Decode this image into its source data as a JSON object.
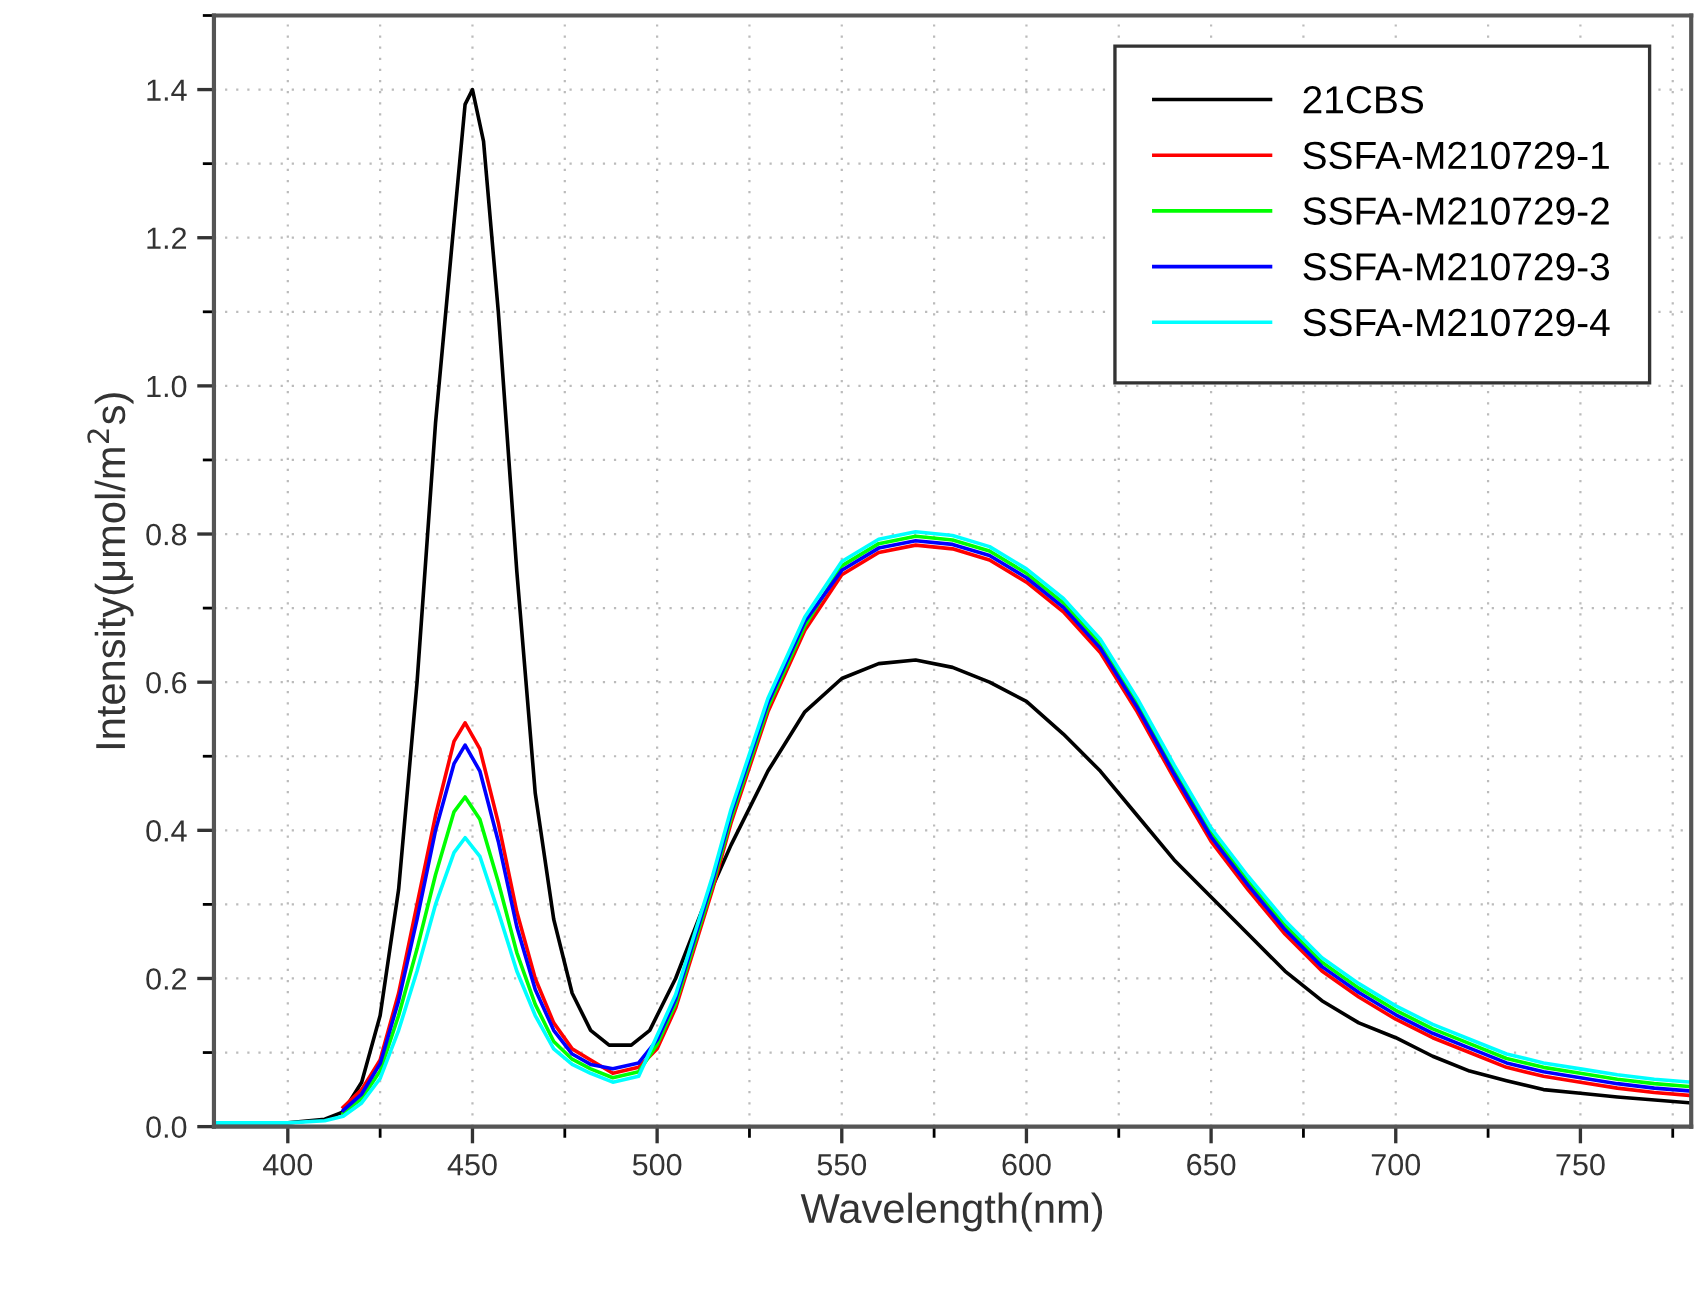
{
  "chart_data": {
    "type": "line",
    "xlabel": "Wavelength(nm)",
    "ylabel": "Intensity(μmol/m$^{2}$s)",
    "xlim": [
      380,
      780
    ],
    "xticks": [
      400,
      450,
      500,
      550,
      600,
      650,
      700,
      750
    ],
    "ylim": [
      0,
      1.5
    ],
    "yticks": [
      {
        "value": 0,
        "label": "0.0"
      },
      0.2,
      0.4,
      0.6,
      0.8,
      {
        "value": 1,
        "label": "1.0"
      },
      1.2,
      1.4
    ],
    "grid": true,
    "legend": "top right",
    "line_style": "solid",
    "marker": "none",
    "series": [
      {
        "name": "21CBS",
        "color": "#000000",
        "x": [
          380,
          400,
          410,
          415,
          420,
          425,
          430,
          435,
          440,
          445,
          448,
          450,
          453,
          457,
          462,
          467,
          472,
          477,
          482,
          487,
          493,
          498,
          505,
          512,
          520,
          530,
          540,
          550,
          560,
          570,
          580,
          590,
          600,
          610,
          620,
          630,
          640,
          650,
          660,
          670,
          680,
          690,
          700,
          710,
          720,
          730,
          740,
          750,
          760,
          780
        ],
        "values": [
          0.005,
          0.005,
          0.01,
          0.02,
          0.06,
          0.15,
          0.32,
          0.6,
          0.95,
          1.22,
          1.38,
          1.4,
          1.33,
          1.1,
          0.75,
          0.45,
          0.28,
          0.18,
          0.13,
          0.11,
          0.11,
          0.13,
          0.2,
          0.29,
          0.38,
          0.48,
          0.56,
          0.605,
          0.625,
          0.63,
          0.62,
          0.6,
          0.574,
          0.53,
          0.48,
          0.42,
          0.36,
          0.31,
          0.26,
          0.21,
          0.17,
          0.14,
          0.12,
          0.095,
          0.075,
          0.062,
          0.05,
          0.045,
          0.04,
          0.032
        ]
      },
      {
        "name": "SSFA-M210729-1",
        "color": "#ff0000",
        "x": [
          415,
          420,
          425,
          430,
          435,
          440,
          445,
          448,
          452,
          457,
          462,
          467,
          472,
          477,
          482,
          488,
          495,
          500,
          505,
          510,
          515,
          520,
          530,
          540,
          550,
          560,
          570,
          580,
          590,
          600,
          610,
          620,
          630,
          640,
          650,
          660,
          670,
          680,
          690,
          700,
          710,
          720,
          730,
          740,
          750,
          760,
          770,
          780
        ],
        "values": [
          0.026,
          0.05,
          0.09,
          0.18,
          0.3,
          0.42,
          0.52,
          0.545,
          0.51,
          0.41,
          0.29,
          0.2,
          0.14,
          0.105,
          0.09,
          0.072,
          0.08,
          0.105,
          0.16,
          0.24,
          0.32,
          0.41,
          0.56,
          0.67,
          0.745,
          0.775,
          0.785,
          0.78,
          0.765,
          0.735,
          0.695,
          0.64,
          0.56,
          0.47,
          0.385,
          0.32,
          0.26,
          0.21,
          0.175,
          0.145,
          0.12,
          0.1,
          0.08,
          0.068,
          0.06,
          0.052,
          0.046,
          0.042
        ]
      },
      {
        "name": "SSFA-M210729-2",
        "color": "#00ff00",
        "x": [
          415,
          420,
          425,
          430,
          435,
          440,
          445,
          448,
          452,
          457,
          462,
          467,
          472,
          477,
          482,
          488,
          495,
          500,
          505,
          510,
          515,
          520,
          530,
          540,
          550,
          560,
          570,
          580,
          590,
          600,
          610,
          620,
          630,
          640,
          650,
          660,
          670,
          680,
          690,
          700,
          710,
          720,
          730,
          740,
          750,
          760,
          770,
          780
        ],
        "values": [
          0.018,
          0.038,
          0.075,
          0.15,
          0.24,
          0.34,
          0.425,
          0.445,
          0.415,
          0.33,
          0.235,
          0.165,
          0.115,
          0.091,
          0.078,
          0.066,
          0.074,
          0.111,
          0.166,
          0.246,
          0.326,
          0.416,
          0.566,
          0.676,
          0.757,
          0.787,
          0.797,
          0.792,
          0.777,
          0.747,
          0.707,
          0.652,
          0.572,
          0.482,
          0.397,
          0.332,
          0.272,
          0.222,
          0.187,
          0.157,
          0.132,
          0.112,
          0.092,
          0.08,
          0.072,
          0.064,
          0.058,
          0.054
        ]
      },
      {
        "name": "SSFA-M210729-3",
        "color": "#0000ff",
        "x": [
          415,
          420,
          425,
          430,
          435,
          440,
          445,
          448,
          452,
          457,
          462,
          467,
          472,
          477,
          482,
          488,
          495,
          500,
          505,
          510,
          515,
          520,
          530,
          540,
          550,
          560,
          570,
          580,
          590,
          600,
          610,
          620,
          630,
          640,
          650,
          660,
          670,
          680,
          690,
          700,
          710,
          720,
          730,
          740,
          750,
          760,
          770,
          780
        ],
        "values": [
          0.022,
          0.044,
          0.085,
          0.17,
          0.28,
          0.4,
          0.49,
          0.515,
          0.48,
          0.385,
          0.27,
          0.185,
          0.13,
          0.098,
          0.084,
          0.078,
          0.086,
          0.117,
          0.172,
          0.252,
          0.332,
          0.422,
          0.572,
          0.682,
          0.751,
          0.781,
          0.791,
          0.786,
          0.771,
          0.741,
          0.701,
          0.646,
          0.566,
          0.476,
          0.391,
          0.326,
          0.266,
          0.216,
          0.181,
          0.151,
          0.126,
          0.106,
          0.086,
          0.074,
          0.066,
          0.058,
          0.052,
          0.048
        ]
      },
      {
        "name": "SSFA-M210729-4",
        "color": "#00ffff",
        "x": [
          380,
          400,
          410,
          415,
          420,
          425,
          430,
          435,
          440,
          445,
          448,
          452,
          457,
          462,
          467,
          472,
          477,
          482,
          488,
          495,
          500,
          505,
          510,
          515,
          520,
          530,
          540,
          550,
          560,
          570,
          580,
          590,
          600,
          610,
          620,
          630,
          640,
          650,
          660,
          670,
          680,
          690,
          700,
          710,
          720,
          730,
          740,
          750,
          760,
          770,
          780
        ],
        "values": [
          0.005,
          0.005,
          0.008,
          0.014,
          0.032,
          0.065,
          0.13,
          0.21,
          0.3,
          0.37,
          0.39,
          0.365,
          0.29,
          0.21,
          0.15,
          0.105,
          0.084,
          0.072,
          0.06,
          0.068,
          0.123,
          0.178,
          0.258,
          0.338,
          0.428,
          0.578,
          0.688,
          0.763,
          0.793,
          0.803,
          0.798,
          0.783,
          0.753,
          0.713,
          0.658,
          0.578,
          0.488,
          0.403,
          0.338,
          0.278,
          0.228,
          0.193,
          0.163,
          0.138,
          0.118,
          0.098,
          0.086,
          0.078,
          0.07,
          0.064,
          0.06
        ]
      }
    ]
  }
}
